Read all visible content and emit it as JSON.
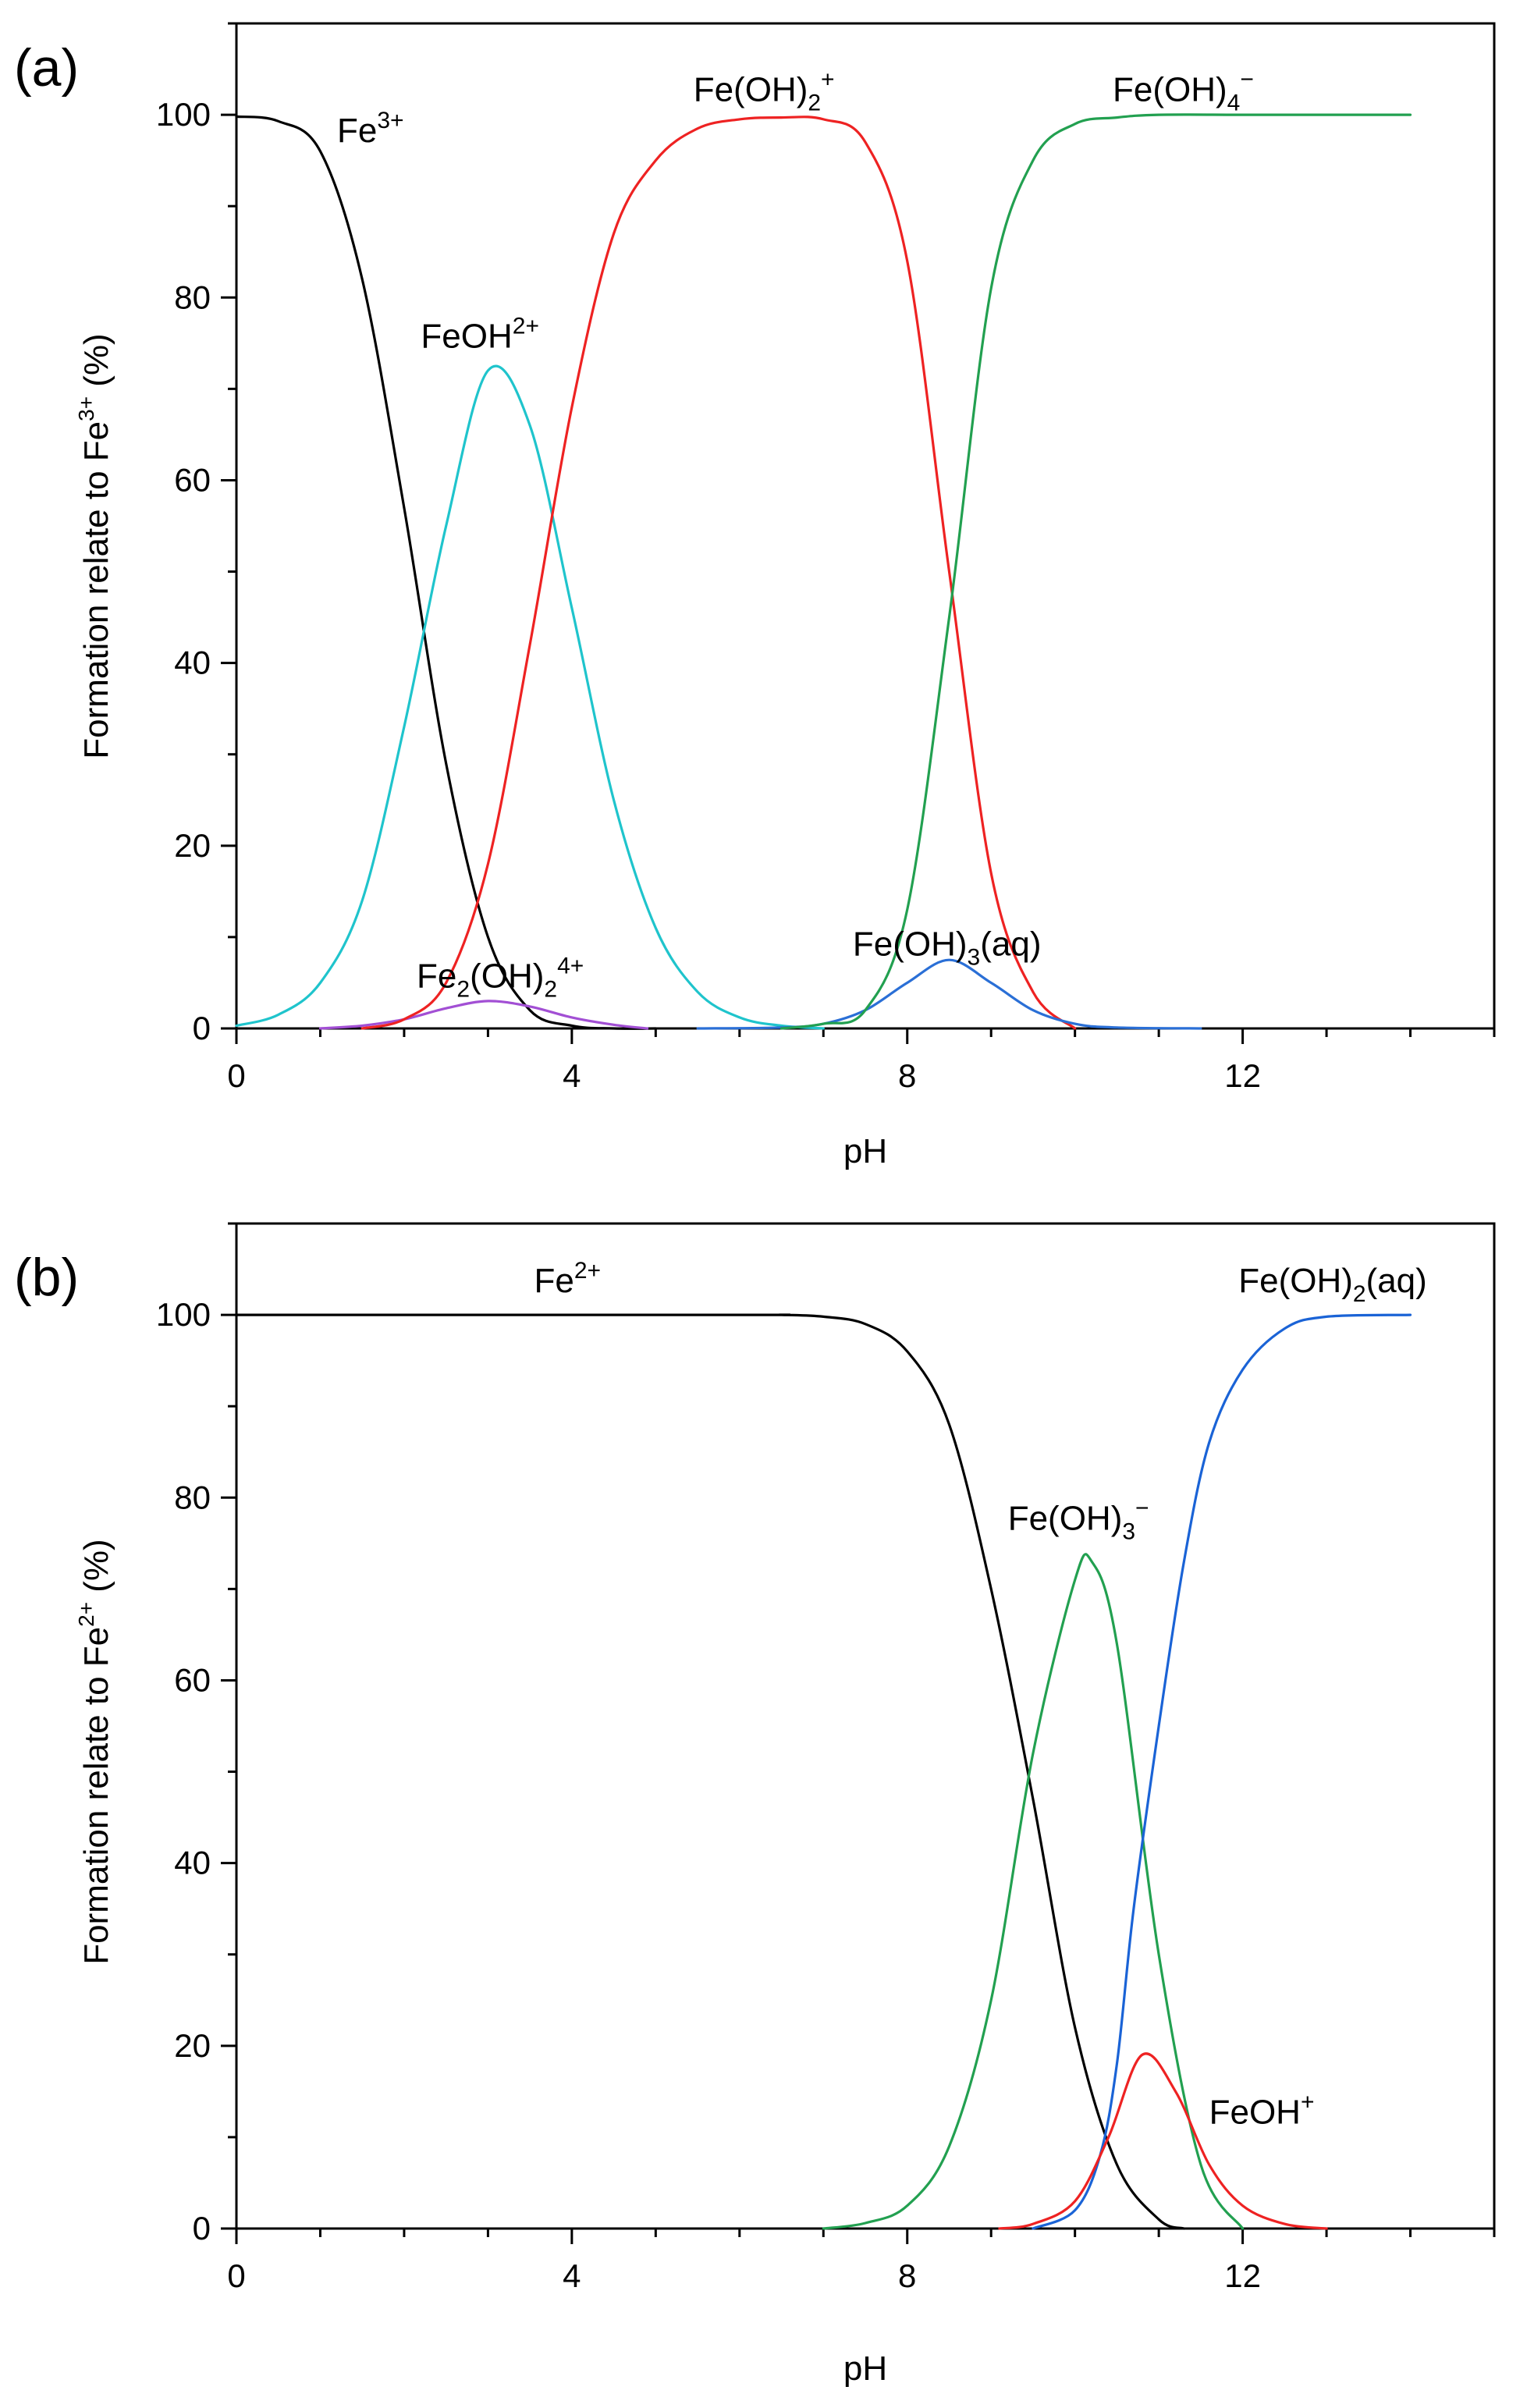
{
  "figure": {
    "panels": [
      "(a)",
      "(b)"
    ]
  },
  "chart_data": [
    {
      "id": "a",
      "type": "line",
      "panel_label": "(a)",
      "title": "",
      "xlabel": "pH",
      "ylabel": {
        "main": "Formation relate to Fe",
        "sup": "3+",
        "tail": " (%)"
      },
      "xlim": [
        0,
        15
      ],
      "ylim": [
        0,
        110
      ],
      "xticks": [
        0,
        4,
        8,
        12
      ],
      "yticks": [
        0,
        20,
        40,
        60,
        80,
        100
      ],
      "grid": false,
      "series": [
        {
          "name": "Fe3+",
          "color": "#000000",
          "x": [
            0,
            0.5,
            1,
            1.5,
            2,
            2.5,
            3,
            3.5,
            4,
            4.5,
            5
          ],
          "y": [
            99.8,
            99.3,
            96,
            82,
            57,
            29,
            10,
            2,
            0.3,
            0,
            0
          ]
        },
        {
          "name": "FeOH2+",
          "color": "#1fc4cc",
          "x": [
            0,
            0.5,
            1,
            1.5,
            2,
            2.5,
            3,
            3.5,
            4,
            4.5,
            5,
            5.5,
            6,
            6.5,
            7
          ],
          "y": [
            0.3,
            1.5,
            5,
            14,
            33,
            55,
            72,
            66,
            46,
            25,
            11,
            4,
            1.2,
            0.3,
            0
          ]
        },
        {
          "name": "Fe2(OH)24+",
          "color": "#a24fd4",
          "x": [
            1,
            1.5,
            2,
            2.5,
            3,
            3.5,
            4,
            4.5,
            4.9
          ],
          "y": [
            0,
            0.3,
            1,
            2.2,
            3,
            2.4,
            1.2,
            0.4,
            0
          ]
        },
        {
          "name": "Fe(OH)2+",
          "color": "#ee2222",
          "x": [
            1.5,
            2,
            2.5,
            3,
            3.5,
            4,
            4.5,
            5,
            5.5,
            6,
            6.5,
            7,
            7.5,
            8,
            8.5,
            9,
            9.5,
            10
          ],
          "y": [
            0,
            1,
            5,
            18,
            42,
            68,
            87,
            95,
            98.5,
            99.5,
            99.7,
            99.5,
            97,
            84,
            50,
            17,
            4,
            0
          ]
        },
        {
          "name": "Fe(OH)3(aq)",
          "color": "#2a6fd6",
          "x": [
            5.5,
            6.5,
            7,
            7.5,
            8,
            8.5,
            9,
            9.5,
            10,
            10.5,
            11.5
          ],
          "y": [
            0,
            0.1,
            0.5,
            2,
            5,
            7.5,
            5,
            2,
            0.5,
            0.1,
            0
          ]
        },
        {
          "name": "Fe(OH)4-",
          "color": "#22a050",
          "x": [
            6.5,
            7,
            7.5,
            8,
            8.5,
            9,
            9.5,
            10,
            10.5,
            11,
            12,
            13,
            14
          ],
          "y": [
            0,
            0.5,
            2,
            13,
            45,
            81,
            95,
            99,
            99.7,
            100,
            100,
            100,
            100
          ]
        }
      ],
      "annotations": [
        {
          "key": "fe3",
          "main": "Fe",
          "sup": "3+",
          "x": 1.2,
          "y": 97
        },
        {
          "key": "feoh2",
          "main": "FeOH",
          "sup": "2+",
          "x": 2.2,
          "y": 74.5
        },
        {
          "key": "feoh2plus",
          "main": "Fe(OH)",
          "sub": "2",
          "sup": "+",
          "x": 5.45,
          "y": 101.5
        },
        {
          "key": "feoh4",
          "main": "Fe(OH)",
          "sub": "4",
          "sup": "−",
          "x": 10.45,
          "y": 101.5
        },
        {
          "key": "fe2oh2",
          "main": "Fe",
          "sub": "2",
          "mid": "(OH)",
          "sub2": "2",
          "sup": "4+",
          "x": 2.15,
          "y": 4.5
        },
        {
          "key": "feoh3aq",
          "main": "Fe(OH)",
          "sub": "3",
          "tail": "(aq)",
          "x": 7.35,
          "y": 8
        }
      ]
    },
    {
      "id": "b",
      "type": "line",
      "panel_label": "(b)",
      "title": "",
      "xlabel": "pH",
      "ylabel": {
        "main": "Formation relate to Fe",
        "sup": "2+",
        "tail": " (%)"
      },
      "xlim": [
        0,
        15
      ],
      "ylim": [
        0,
        110
      ],
      "xticks": [
        0,
        4,
        8,
        12
      ],
      "yticks": [
        0,
        20,
        40,
        60,
        80,
        100
      ],
      "grid": false,
      "series": [
        {
          "name": "Fe2+",
          "color": "#000000",
          "x": [
            0,
            6,
            6.5,
            7,
            7.5,
            8,
            8.5,
            9,
            9.5,
            10,
            10.5,
            11,
            11.3
          ],
          "y": [
            100,
            100,
            100,
            99.8,
            99,
            96,
            88,
            70,
            47,
            22,
            7,
            1,
            0
          ]
        },
        {
          "name": "Fe(OH)3-",
          "color": "#22a050",
          "x": [
            7,
            7.5,
            8,
            8.5,
            9,
            9.5,
            10,
            10.2,
            10.5,
            11,
            11.5,
            12
          ],
          "y": [
            0,
            0.6,
            2.5,
            9,
            25,
            52,
            71,
            73,
            64,
            30,
            7,
            0
          ]
        },
        {
          "name": "Fe(OH)2(aq)",
          "color": "#1a63d6",
          "x": [
            9.5,
            10,
            10.3,
            10.5,
            10.7,
            11,
            11.3,
            11.6,
            12,
            12.5,
            13,
            14
          ],
          "y": [
            0,
            2,
            8,
            18,
            35,
            55,
            73,
            86,
            94,
            98.5,
            99.8,
            100
          ]
        },
        {
          "name": "FeOH+",
          "color": "#ee2222",
          "x": [
            9.1,
            9.5,
            10,
            10.4,
            10.8,
            11.2,
            11.6,
            12,
            12.5,
            13
          ],
          "y": [
            0,
            0.5,
            3,
            10,
            19,
            15,
            7,
            2.5,
            0.5,
            0
          ]
        }
      ],
      "annotations": [
        {
          "key": "fe2",
          "main": "Fe",
          "sup": "2+",
          "x": 3.55,
          "y": 102.5
        },
        {
          "key": "feoh2aq",
          "main": "Fe(OH)",
          "sub": "2",
          "tail": "(aq)",
          "x": 11.95,
          "y": 102.5
        },
        {
          "key": "feoh3minus",
          "main": "Fe(OH)",
          "sub": "3",
          "sup": "−",
          "x": 9.2,
          "y": 76.5
        },
        {
          "key": "feohplus",
          "main": "FeOH",
          "sup": "+",
          "x": 11.6,
          "y": 11.5
        }
      ]
    }
  ]
}
